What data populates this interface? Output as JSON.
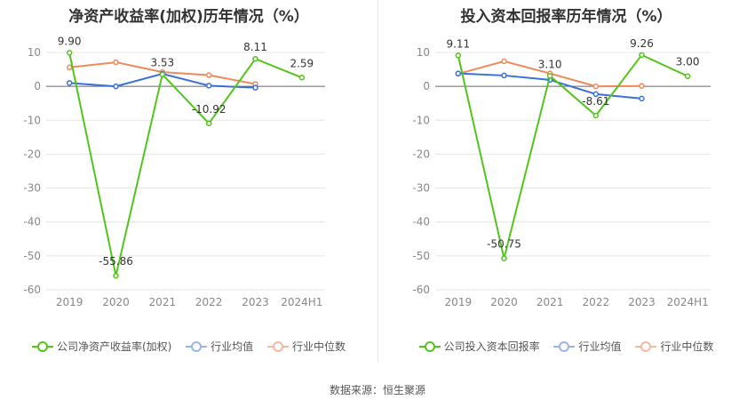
{
  "source_label": "数据来源：恒生聚源",
  "chart_data": [
    {
      "type": "line",
      "title": "净资产收益率(加权)历年情况（%）",
      "categories": [
        "2019",
        "2020",
        "2021",
        "2022",
        "2023",
        "2024H1"
      ],
      "ylim": [
        -60,
        10
      ],
      "yticks": [
        10,
        0,
        -10,
        -20,
        -30,
        -40,
        -50,
        -60
      ],
      "grid": true,
      "legend_position": "bottom",
      "series": [
        {
          "name": "公司净资产收益率(加权)",
          "color": "#52c41a",
          "values": [
            9.9,
            -55.86,
            3.53,
            -10.92,
            8.11,
            2.59
          ],
          "labels": [
            "9.90",
            "-55.86",
            "3.53",
            "-10.92",
            "8.11",
            "2.59"
          ]
        },
        {
          "name": "行业均值",
          "color": "#3a70d8",
          "values": [
            1.0,
            0.0,
            3.7,
            0.2,
            -0.4,
            null
          ]
        },
        {
          "name": "行业中位数",
          "color": "#f08a5d",
          "values": [
            5.6,
            7.1,
            4.2,
            3.3,
            0.7,
            null
          ]
        }
      ]
    },
    {
      "type": "line",
      "title": "投入资本回报率历年情况（%）",
      "categories": [
        "2019",
        "2020",
        "2021",
        "2022",
        "2023",
        "2024H1"
      ],
      "ylim": [
        -60,
        10
      ],
      "yticks": [
        10,
        0,
        -10,
        -20,
        -30,
        -40,
        -50,
        -60
      ],
      "grid": true,
      "legend_position": "bottom",
      "series": [
        {
          "name": "公司投入资本回报率",
          "color": "#52c41a",
          "values": [
            9.11,
            -50.75,
            3.1,
            -8.61,
            9.26,
            3.0
          ],
          "labels": [
            "9.11",
            "-50.75",
            "3.10",
            "-8.61",
            "9.26",
            "3.00"
          ]
        },
        {
          "name": "行业均值",
          "color": "#3a70d8",
          "values": [
            3.8,
            3.2,
            1.9,
            -2.3,
            -3.6,
            null
          ]
        },
        {
          "name": "行业中位数",
          "color": "#f08a5d",
          "values": [
            3.7,
            7.4,
            3.8,
            0.0,
            0.1,
            null
          ]
        }
      ]
    }
  ]
}
